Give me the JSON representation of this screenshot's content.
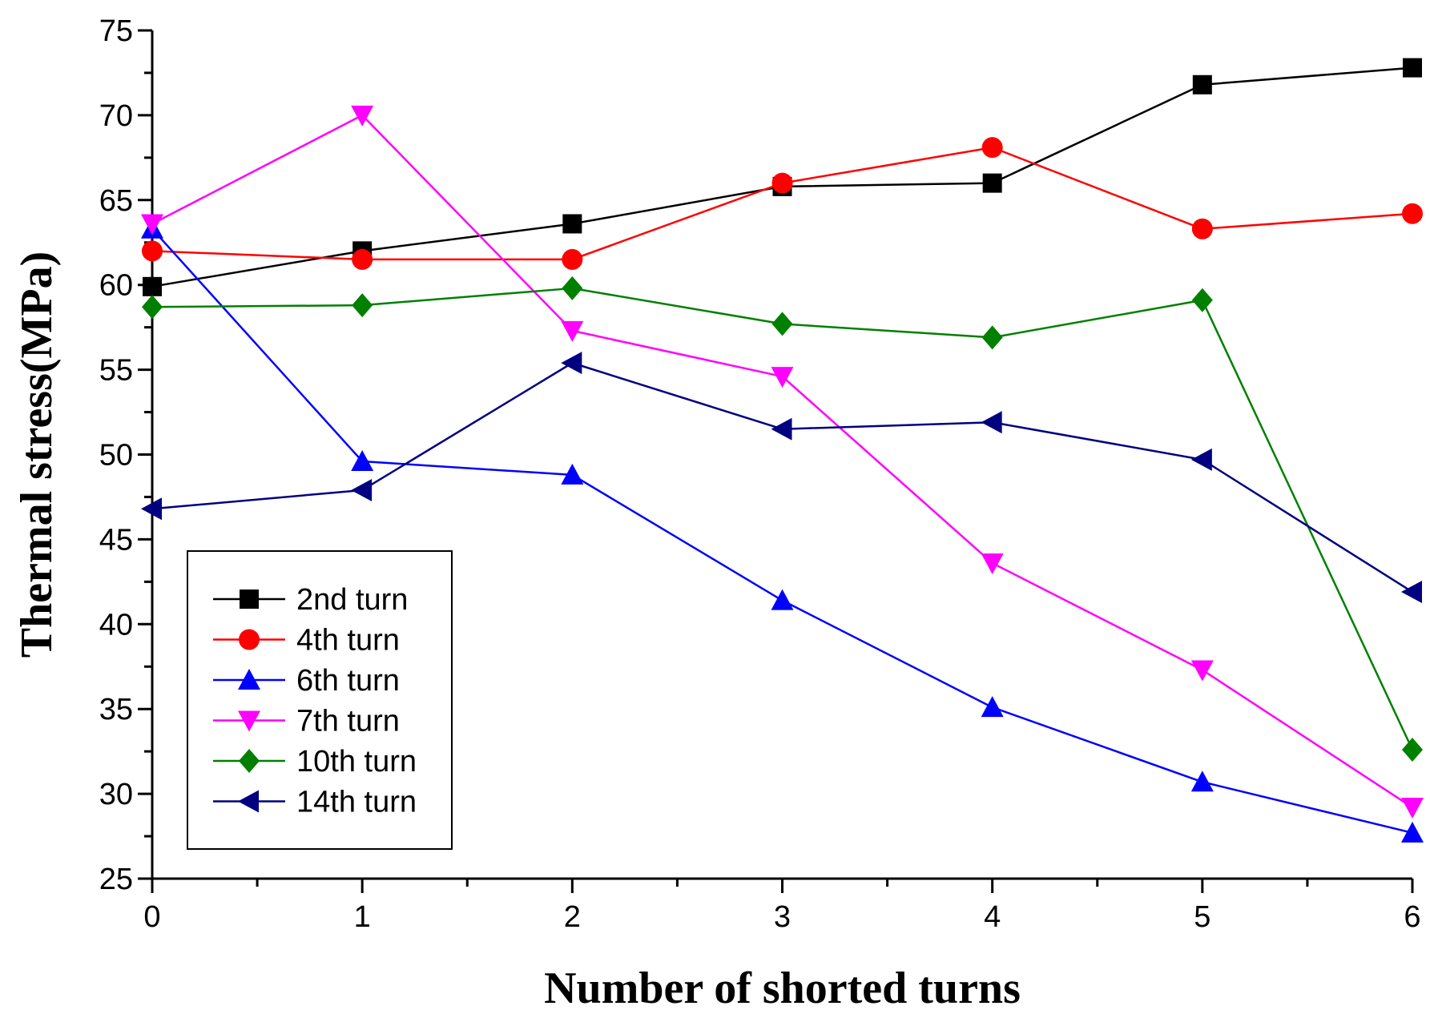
{
  "chart_data": {
    "type": "line",
    "title": "",
    "xlabel": "Number of shorted turns",
    "ylabel": "Thermal stress(MPa)",
    "x": [
      0,
      1,
      2,
      3,
      4,
      5,
      6
    ],
    "xlim": [
      0,
      6
    ],
    "ylim": [
      25,
      75
    ],
    "xticks": [
      "0",
      "1",
      "2",
      "3",
      "4",
      "5",
      "6"
    ],
    "yticks": [
      "25",
      "30",
      "35",
      "40",
      "45",
      "50",
      "55",
      "60",
      "65",
      "70",
      "75"
    ],
    "grid": false,
    "legend_position": "bottom-left",
    "series": [
      {
        "name": "2nd turn",
        "color": "#000000",
        "marker": "square",
        "values": [
          59.9,
          62.0,
          63.6,
          65.8,
          66.0,
          71.8,
          72.8
        ]
      },
      {
        "name": "4th turn",
        "color": "#ff0000",
        "marker": "circle",
        "values": [
          62.0,
          61.5,
          61.5,
          66.0,
          68.1,
          63.3,
          64.2
        ]
      },
      {
        "name": "6th turn",
        "color": "#0000ff",
        "marker": "triangle-up",
        "values": [
          63.3,
          49.6,
          48.8,
          41.4,
          35.1,
          30.7,
          27.7
        ]
      },
      {
        "name": "7th turn",
        "color": "#ff00ff",
        "marker": "triangle-down",
        "values": [
          63.6,
          70.0,
          57.3,
          54.6,
          43.6,
          37.3,
          29.2
        ]
      },
      {
        "name": "10th turn",
        "color": "#008000",
        "marker": "diamond",
        "values": [
          58.7,
          58.8,
          59.8,
          57.7,
          56.9,
          59.1,
          32.6
        ]
      },
      {
        "name": "14th turn",
        "color": "#000080",
        "marker": "triangle-left",
        "values": [
          46.8,
          47.9,
          55.4,
          51.5,
          51.9,
          49.7,
          41.9
        ]
      }
    ]
  }
}
